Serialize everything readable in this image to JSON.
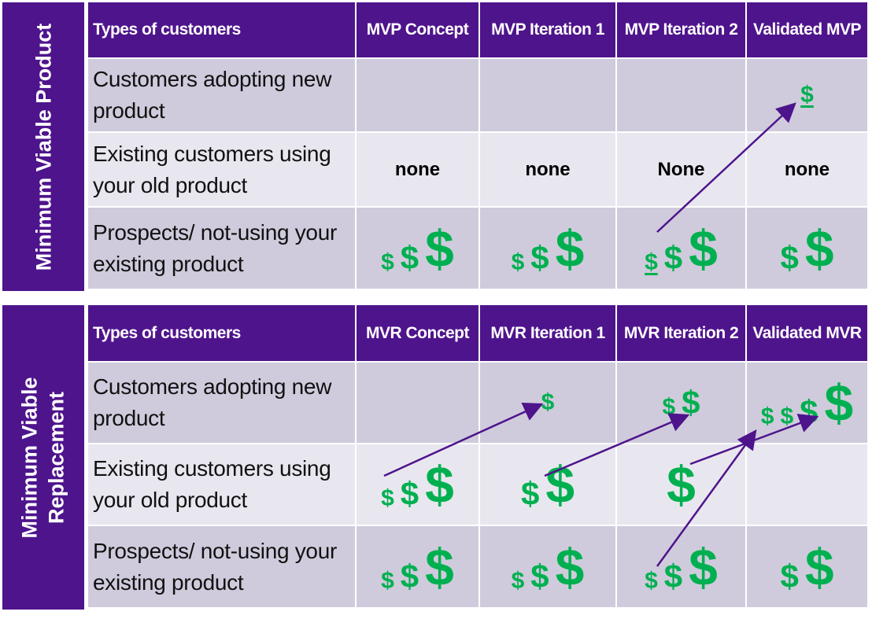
{
  "colors": {
    "header": "#4e148c",
    "row_dark": "#cfcbdc",
    "row_light": "#e8e7ef",
    "dollar": "#00b050",
    "arrow": "#4e148c"
  },
  "tables": [
    {
      "side_label": [
        "Minimum Viable Product"
      ],
      "headers": [
        "Types of customers",
        "MVP Concept",
        "MVP Iteration 1",
        "MVP Iteration 2",
        "Validated MVP"
      ],
      "rows": [
        {
          "label": "Customers adopting new product",
          "cells": [
            [],
            [],
            [],
            [
              {
                "sym": "$",
                "size": "s",
                "underline": true
              }
            ]
          ]
        },
        {
          "label": "Existing customers using your old product",
          "cells": [
            "none",
            "none",
            "None",
            "none"
          ]
        },
        {
          "label": "Prospects/ not-using your existing product",
          "cells": [
            [
              {
                "sym": "$",
                "size": "s"
              },
              {
                "sym": "$",
                "size": "m"
              },
              {
                "sym": "$",
                "size": "l"
              }
            ],
            [
              {
                "sym": "$",
                "size": "s"
              },
              {
                "sym": "$",
                "size": "m"
              },
              {
                "sym": "$",
                "size": "l"
              }
            ],
            [
              {
                "sym": "$",
                "size": "s",
                "underline": true
              },
              {
                "sym": "$",
                "size": "m"
              },
              {
                "sym": "$",
                "size": "l"
              }
            ],
            [
              {
                "sym": "$",
                "size": "m"
              },
              {
                "sym": "$",
                "size": "l"
              }
            ]
          ]
        }
      ]
    },
    {
      "side_label": [
        "Minimum Viable",
        "Replacement"
      ],
      "headers": [
        "Types of customers",
        "MVR Concept",
        "MVR Iteration 1",
        "MVR Iteration 2",
        "Validated MVR"
      ],
      "rows": [
        {
          "label": "Customers adopting new product",
          "cells": [
            [],
            [
              {
                "sym": "$",
                "size": "s"
              }
            ],
            [
              {
                "sym": "$",
                "size": "s"
              },
              {
                "sym": "$",
                "size": "m"
              }
            ],
            [
              {
                "sym": "$",
                "size": "s"
              },
              {
                "sym": "$",
                "size": "s"
              },
              {
                "sym": "$",
                "size": "m"
              },
              {
                "sym": "$",
                "size": "l"
              }
            ]
          ]
        },
        {
          "label": "Existing customers using your old product",
          "cells": [
            [
              {
                "sym": "$",
                "size": "s"
              },
              {
                "sym": "$",
                "size": "m"
              },
              {
                "sym": "$",
                "size": "l"
              }
            ],
            [
              {
                "sym": "$",
                "size": "m"
              },
              {
                "sym": "$",
                "size": "l"
              }
            ],
            [
              {
                "sym": "$",
                "size": "l"
              }
            ],
            []
          ]
        },
        {
          "label": "Prospects/ not-using your existing product",
          "cells": [
            [
              {
                "sym": "$",
                "size": "s"
              },
              {
                "sym": "$",
                "size": "m"
              },
              {
                "sym": "$",
                "size": "l"
              }
            ],
            [
              {
                "sym": "$",
                "size": "s"
              },
              {
                "sym": "$",
                "size": "m"
              },
              {
                "sym": "$",
                "size": "l"
              }
            ],
            [
              {
                "sym": "$",
                "size": "s"
              },
              {
                "sym": "$",
                "size": "m"
              },
              {
                "sym": "$",
                "size": "l"
              }
            ],
            [
              {
                "sym": "$",
                "size": "m"
              },
              {
                "sym": "$",
                "size": "l"
              }
            ]
          ]
        }
      ]
    }
  ]
}
